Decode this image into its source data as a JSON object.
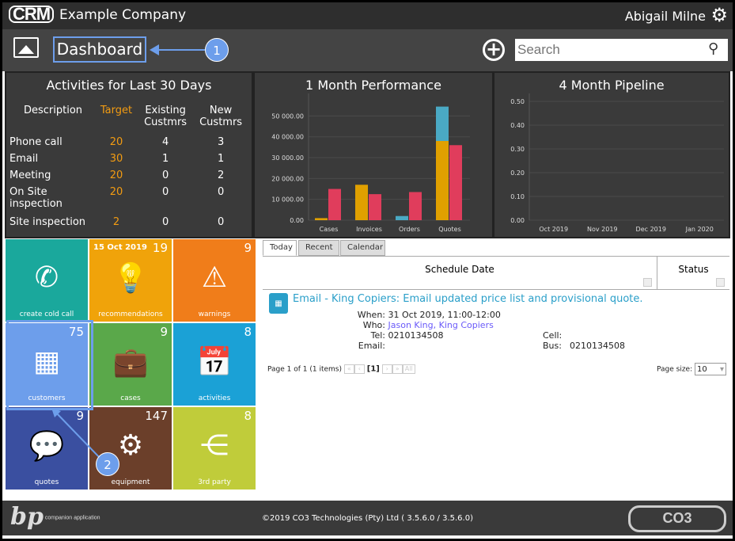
{
  "header": {
    "logo": "CRM",
    "company": "Example Company",
    "user": "Abigail Milne"
  },
  "toolbar": {
    "page_title": "Dashboard",
    "search_placeholder": "Search"
  },
  "annotations": {
    "callout1": "1",
    "callout2": "2"
  },
  "activities": {
    "title": "Activities for Last 30 Days",
    "columns": [
      "Description",
      "Target",
      "Existing Custmrs",
      "New Custmrs"
    ],
    "rows": [
      [
        "Phone call",
        "20",
        "4",
        "3"
      ],
      [
        "Email",
        "30",
        "1",
        "1"
      ],
      [
        "Meeting",
        "20",
        "0",
        "2"
      ],
      [
        "On Site inspection",
        "20",
        "0",
        "0"
      ],
      [
        "Site inspection",
        "2",
        "0",
        "0"
      ]
    ]
  },
  "chart_data": [
    {
      "type": "bar",
      "title": "1 Month Performance",
      "categories": [
        "Cases",
        "Invoices",
        "Orders",
        "Quotes"
      ],
      "ylim": [
        0,
        57000
      ],
      "yticks": [
        "0.00",
        "10 000.00",
        "20 000.00",
        "30 000.00",
        "40 000.00",
        "50 000.00"
      ],
      "series": [
        {
          "name": "orange",
          "color": "#e0a000",
          "values": [
            1000,
            17000,
            0,
            38000
          ]
        },
        {
          "name": "blue",
          "color": "#4aa9c4",
          "values": [
            0,
            0,
            2000,
            16500
          ]
        },
        {
          "name": "red",
          "color": "#e03d5c",
          "values": [
            15000,
            12500,
            13500,
            36000
          ]
        }
      ]
    },
    {
      "type": "line",
      "title": "4 Month Pipeline",
      "categories": [
        "Oct 2019",
        "Nov 2019",
        "Dec 2019",
        "Jan 2020"
      ],
      "ylim": [
        0,
        0.5
      ],
      "yticks": [
        "0.00",
        "0.10",
        "0.20",
        "0.30",
        "0.40",
        "0.50"
      ],
      "series": []
    }
  ],
  "tiles": [
    {
      "label": "create cold call",
      "count": "",
      "date": "",
      "icon": "phone-icon",
      "glyph": "✆",
      "color": "#1aa89c"
    },
    {
      "label": "recommendations",
      "count": "19",
      "date": "15 Oct 2019",
      "icon": "lightbulb-icon",
      "glyph": "💡",
      "color": "#f0a30a"
    },
    {
      "label": "warnings",
      "count": "9",
      "date": "",
      "icon": "warning-icon",
      "glyph": "⚠",
      "color": "#f07d1a"
    },
    {
      "label": "customers",
      "count": "75",
      "date": "",
      "icon": "building-icon",
      "glyph": "▦",
      "color": "#6d9eeb"
    },
    {
      "label": "cases",
      "count": "9",
      "date": "",
      "icon": "briefcase-icon",
      "glyph": "💼",
      "color": "#5aa84a"
    },
    {
      "label": "activities",
      "count": "8",
      "date": "",
      "icon": "calendar-icon",
      "glyph": "📅",
      "color": "#1ba1d6"
    },
    {
      "label": "quotes",
      "count": "9",
      "date": "",
      "icon": "chat-icon",
      "glyph": "💬",
      "color": "#3a4fa0"
    },
    {
      "label": "equipment",
      "count": "147",
      "date": "",
      "icon": "gears-icon",
      "glyph": "⚙",
      "color": "#6b3f2a"
    },
    {
      "label": "3rd party",
      "count": "8",
      "date": "",
      "icon": "share-icon",
      "glyph": "⋲",
      "color": "#c0cc3a"
    }
  ],
  "schedule": {
    "tabs": [
      "Today",
      "Recent",
      "Calendar"
    ],
    "columns": [
      "Schedule Date",
      "Status"
    ],
    "item": {
      "title": "Email - King Copiers: Email updated price list and provisional quote.",
      "when_label": "When:",
      "when": "31 Oct 2019, 11:00-12:00",
      "who_label": "Who:",
      "who": "Jason King, King Copiers",
      "tel_label": "Tel:",
      "tel": "0210134508",
      "email_label": "Email:",
      "cell_label": "Cell:",
      "bus_label": "Bus:",
      "bus": "0210134508"
    },
    "pager": {
      "info": "Page 1 of 1 (1 items)",
      "current": "[1]",
      "all": "All",
      "page_size_label": "Page size:",
      "page_size": "10"
    }
  },
  "footer": {
    "copyright": "©2019 CO3 Technologies (Pty) Ltd ( 3.5.6.0 / 3.5.6.0)",
    "left_logo": "bp a companion application",
    "right_logo": "CO3 TECHNOLOGIES"
  }
}
